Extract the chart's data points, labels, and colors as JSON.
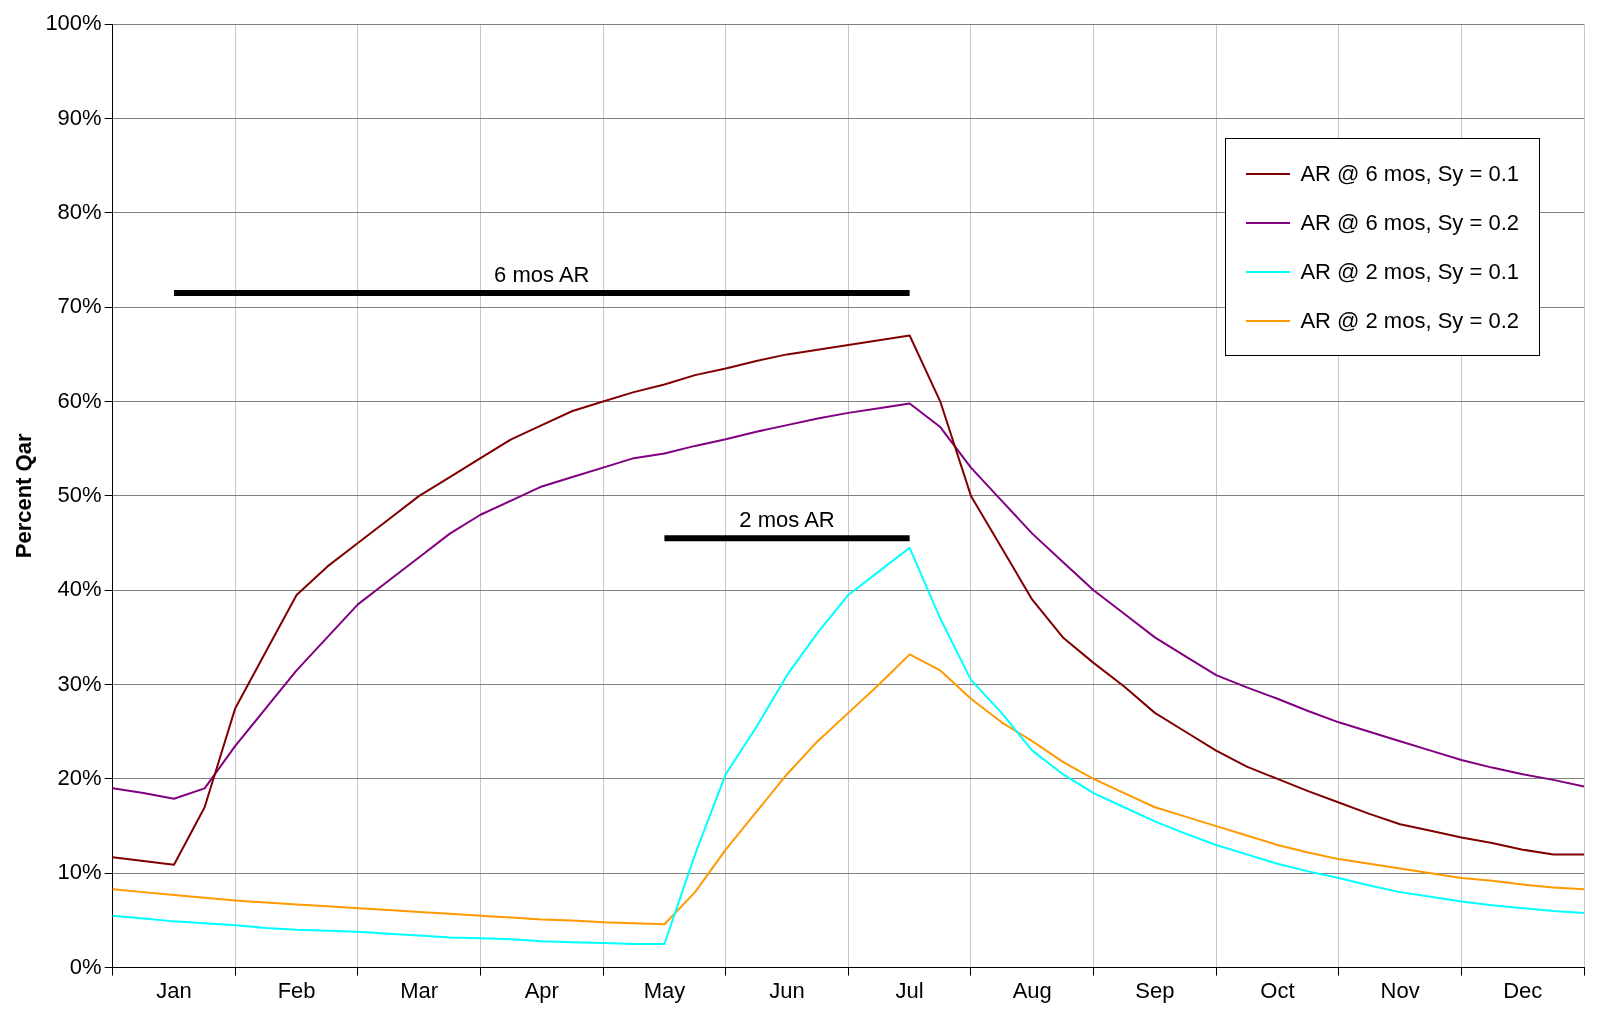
{
  "chart_data": {
    "type": "line",
    "ylabel": "Percent Qar",
    "categories": [
      null,
      null,
      "Jan",
      null,
      null,
      null,
      "Feb",
      null,
      null,
      null,
      "Mar",
      null,
      null,
      null,
      "Apr",
      null,
      null,
      null,
      "May",
      null,
      null,
      null,
      "Jun",
      null,
      null,
      null,
      "Jul",
      null,
      null,
      null,
      "Aug",
      null,
      null,
      null,
      "Sep",
      null,
      null,
      null,
      "Oct",
      null,
      null,
      null,
      "Nov",
      null,
      null,
      null,
      "Dec",
      null,
      null
    ],
    "ylim": [
      0,
      100
    ],
    "yticks": [
      {
        "value": 0,
        "label": "0%"
      },
      {
        "value": 10,
        "label": "10%"
      },
      {
        "value": 20,
        "label": "20%"
      },
      {
        "value": 30,
        "label": "30%"
      },
      {
        "value": 40,
        "label": "40%"
      },
      {
        "value": 50,
        "label": "50%"
      },
      {
        "value": 60,
        "label": "60%"
      },
      {
        "value": 70,
        "label": "70%"
      },
      {
        "value": 80,
        "label": "80%"
      },
      {
        "value": 90,
        "label": "90%"
      },
      {
        "value": 100,
        "label": "100%"
      }
    ],
    "grid": true,
    "legend": "top right",
    "marker": "none",
    "line_style": "solid",
    "series": [
      {
        "name": "AR @ 6 mos, Sy = 0.1",
        "color": "#800000",
        "values": [
          11.7,
          11.3,
          10.9,
          17,
          27.5,
          33.5,
          39.5,
          42.5,
          45,
          47.5,
          50,
          52,
          54,
          56,
          57.5,
          59,
          60,
          61,
          61.8,
          62.8,
          63.5,
          64.3,
          65,
          65.5,
          66,
          66.5,
          67,
          60,
          50,
          44.5,
          39,
          35,
          32.3,
          29.8,
          27,
          25,
          23,
          21.3,
          20,
          18.7,
          17.5,
          16.3,
          15.2,
          14.5,
          13.8,
          13.2,
          12.5,
          12,
          12
        ]
      },
      {
        "name": "AR @ 6 mos, Sy = 0.2",
        "color": "#800080",
        "values": [
          19,
          18.5,
          17.9,
          19,
          23.5,
          27.5,
          31.5,
          35,
          38.5,
          41,
          43.5,
          46,
          48,
          49.5,
          51,
          52,
          53,
          54,
          54.5,
          55.3,
          56,
          56.8,
          57.5,
          58.2,
          58.8,
          59.3,
          59.8,
          57.3,
          53,
          49.5,
          46,
          43,
          40,
          37.5,
          35,
          33,
          31,
          29.7,
          28.5,
          27.2,
          26,
          25,
          24,
          23,
          22,
          21.2,
          20.5,
          19.9,
          19.2
        ]
      },
      {
        "name": "AR @ 2 mos, Sy = 0.1",
        "color": "#00ffff",
        "values": [
          5.5,
          5.2,
          4.9,
          4.7,
          4.5,
          4.2,
          4,
          3.9,
          3.8,
          3.6,
          3.4,
          3.2,
          3.1,
          3,
          2.8,
          2.7,
          2.6,
          2.5,
          2.5,
          12,
          20.5,
          25.5,
          31,
          35.5,
          39.5,
          42,
          44.5,
          37,
          30.5,
          27,
          23,
          20.5,
          18.5,
          17,
          15.5,
          14.2,
          13,
          12,
          11,
          10.2,
          9.5,
          8.7,
          8,
          7.5,
          7,
          6.6,
          6.3,
          6,
          5.8
        ]
      },
      {
        "name": "AR @ 2 mos, Sy = 0.2",
        "color": "#ff9900",
        "values": [
          8.3,
          8,
          7.7,
          7.4,
          7.1,
          6.9,
          6.7,
          6.5,
          6.3,
          6.1,
          5.9,
          5.7,
          5.5,
          5.3,
          5.1,
          5,
          4.8,
          4.7,
          4.6,
          8,
          12.5,
          16.5,
          20.5,
          24,
          27,
          30,
          33.2,
          31.5,
          28.5,
          26,
          24,
          21.8,
          20,
          18.5,
          17,
          16,
          15,
          14,
          13,
          12.2,
          11.5,
          11,
          10.5,
          10,
          9.5,
          9.2,
          8.8,
          8.5,
          8.3
        ]
      },
      {
        "color": "#000000",
        "values": [
          null,
          null,
          71.5,
          71.5,
          71.5,
          71.5,
          71.5,
          71.5,
          71.5,
          71.5,
          71.5,
          71.5,
          71.5,
          71.5,
          71.5,
          71.5,
          71.5,
          71.5,
          71.5,
          71.5,
          71.5,
          71.5,
          71.5,
          71.5,
          71.5,
          71.5,
          71.5,
          null,
          null,
          null,
          null,
          null,
          null,
          null,
          null,
          null,
          null,
          null,
          null,
          null,
          null,
          null,
          null,
          null,
          null,
          null,
          null,
          null,
          null
        ]
      },
      {
        "color": "#000000",
        "values": [
          null,
          null,
          null,
          null,
          null,
          null,
          null,
          null,
          null,
          null,
          null,
          null,
          null,
          null,
          null,
          null,
          null,
          null,
          45.5,
          45.5,
          45.5,
          45.5,
          45.5,
          45.5,
          45.5,
          45.5,
          45.5,
          null,
          null,
          null,
          null,
          null,
          null,
          null,
          null,
          null,
          null,
          null,
          null,
          null,
          null,
          null,
          null,
          null,
          null,
          null,
          null,
          null,
          null
        ]
      }
    ],
    "annotations": [
      {
        "text": "6 mos AR",
        "x": "Apr",
        "y": 71.5
      },
      {
        "text": "2 mos AR",
        "x": "Jun",
        "y": 45.5
      }
    ]
  }
}
